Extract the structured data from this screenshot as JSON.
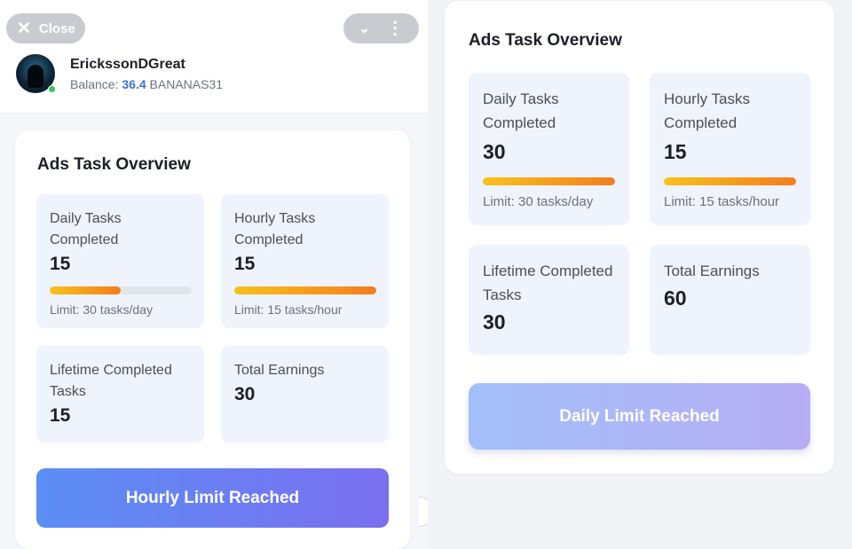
{
  "header": {
    "close_label": "Close",
    "close_icon": "close-icon",
    "menu_icons": [
      "chevron-down-icon",
      "more-vertical-icon"
    ],
    "user": {
      "name": "ErickssonDGreat",
      "balance_prefix": "Balance:",
      "balance_value": "36.4",
      "balance_unit": "BANANAS31",
      "status_color": "#3ac45e"
    }
  },
  "left_card": {
    "title": "Ads Task Overview",
    "daily": {
      "label": "Daily Tasks Completed",
      "value": "15",
      "limit": "Limit: 30 tasks/day",
      "progress": 0.5
    },
    "hourly": {
      "label": "Hourly Tasks Completed",
      "value": "15",
      "limit": "Limit: 15 tasks/hour",
      "progress": 1.0
    },
    "lifetime": {
      "label": "Lifetime Completed Tasks",
      "value": "15"
    },
    "earnings": {
      "label": "Total Earnings",
      "value": "30"
    },
    "button_label": "Hourly Limit Reached"
  },
  "right_card": {
    "title": "Ads Task Overview",
    "daily": {
      "label": "Daily Tasks Completed",
      "value": "30",
      "limit": "Limit: 30 tasks/day",
      "progress": 1.0
    },
    "hourly": {
      "label": "Hourly Tasks Completed",
      "value": "15",
      "limit": "Limit: 15 tasks/hour",
      "progress": 1.0
    },
    "lifetime": {
      "label": "Lifetime Completed Tasks",
      "value": "30"
    },
    "earnings": {
      "label": "Total Earnings",
      "value": "60"
    },
    "button_label": "Daily Limit Reached"
  },
  "colors": {
    "accent_blue": "#3d6fd4",
    "progress_start": "#f7c21a",
    "progress_end": "#f57c1f",
    "button_start": "#5b8ef4",
    "button_end": "#7b6ff0"
  }
}
